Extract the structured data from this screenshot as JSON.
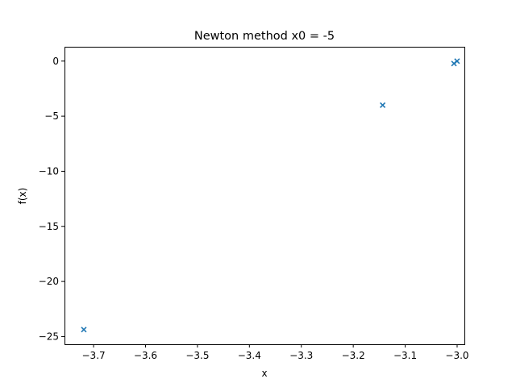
{
  "chart_data": {
    "type": "scatter",
    "title": "Newton method x0 = -5",
    "xlabel": "x",
    "ylabel": "f(x)",
    "xlim": [
      -3.756,
      -2.986
    ],
    "ylim": [
      -25.7,
      1.3
    ],
    "xticks": [
      -3.7,
      -3.6,
      -3.5,
      -3.4,
      -3.3,
      -3.2,
      -3.1,
      -3.0
    ],
    "xtick_labels": [
      "−3.7",
      "−3.6",
      "−3.5",
      "−3.4",
      "−3.3",
      "−3.2",
      "−3.1",
      "−3.0"
    ],
    "yticks": [
      0,
      -5,
      -10,
      -15,
      -20,
      -25
    ],
    "ytick_labels": [
      "0",
      "−5",
      "−10",
      "−15",
      "−20",
      "−25"
    ],
    "grid": false,
    "series": [
      {
        "marker": "x",
        "color": "#1f77b4",
        "x": [
          -3.7188,
          -3.1434,
          -3.0061,
          -3.0001
        ],
        "y": [
          -24.37,
          -4.0,
          -0.22,
          -0.003
        ]
      }
    ]
  }
}
